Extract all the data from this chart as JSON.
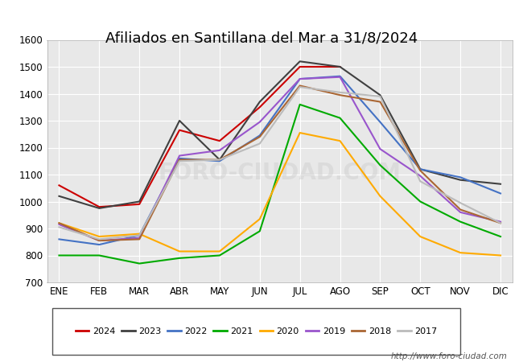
{
  "title": "Afiliados en Santillana del Mar a 31/8/2024",
  "xlabel": "",
  "ylabel": "",
  "ylim": [
    700,
    1600
  ],
  "yticks": [
    700,
    800,
    900,
    1000,
    1100,
    1200,
    1300,
    1400,
    1500,
    1600
  ],
  "months": [
    "ENE",
    "FEB",
    "MAR",
    "ABR",
    "MAY",
    "JUN",
    "JUL",
    "AGO",
    "SEP",
    "OCT",
    "NOV",
    "DIC"
  ],
  "series": {
    "2024": {
      "color": "#cc0000",
      "data": [
        1060,
        980,
        990,
        1265,
        1225,
        1350,
        1500,
        1500,
        null,
        null,
        null,
        null
      ]
    },
    "2023": {
      "color": "#404040",
      "data": [
        1020,
        975,
        1000,
        1300,
        1155,
        1370,
        1520,
        1500,
        1395,
        1120,
        1080,
        1065
      ]
    },
    "2022": {
      "color": "#4472c4",
      "data": [
        860,
        840,
        875,
        1160,
        1150,
        1245,
        1455,
        1465,
        1295,
        1120,
        1090,
        1030
      ]
    },
    "2021": {
      "color": "#00aa00",
      "data": [
        800,
        800,
        770,
        790,
        800,
        890,
        1360,
        1310,
        1135,
        1000,
        925,
        870
      ]
    },
    "2020": {
      "color": "#ffaa00",
      "data": [
        920,
        870,
        880,
        815,
        815,
        935,
        1255,
        1225,
        1020,
        870,
        810,
        800
      ]
    },
    "2019": {
      "color": "#9955cc",
      "data": [
        915,
        855,
        865,
        1170,
        1190,
        1295,
        1455,
        1462,
        1195,
        1095,
        960,
        925
      ]
    },
    "2018": {
      "color": "#aa6633",
      "data": [
        920,
        855,
        860,
        1155,
        1155,
        1240,
        1430,
        1395,
        1370,
        1115,
        970,
        920
      ]
    },
    "2017": {
      "color": "#bbbbbb",
      "data": [
        905,
        860,
        875,
        1150,
        1155,
        1215,
        1425,
        1405,
        1390,
        1075,
        995,
        920
      ]
    }
  },
  "legend_order": [
    "2024",
    "2023",
    "2022",
    "2021",
    "2020",
    "2019",
    "2018",
    "2017"
  ],
  "footer_url": "http://www.foro-ciudad.com",
  "fig_bg_color": "#ffffff",
  "plot_bg_color": "#e8e8e8",
  "top_bar_color": "#4472c4",
  "grid_color": "#ffffff",
  "title_fontsize": 13,
  "tick_fontsize": 8.5,
  "legend_fontsize": 8
}
